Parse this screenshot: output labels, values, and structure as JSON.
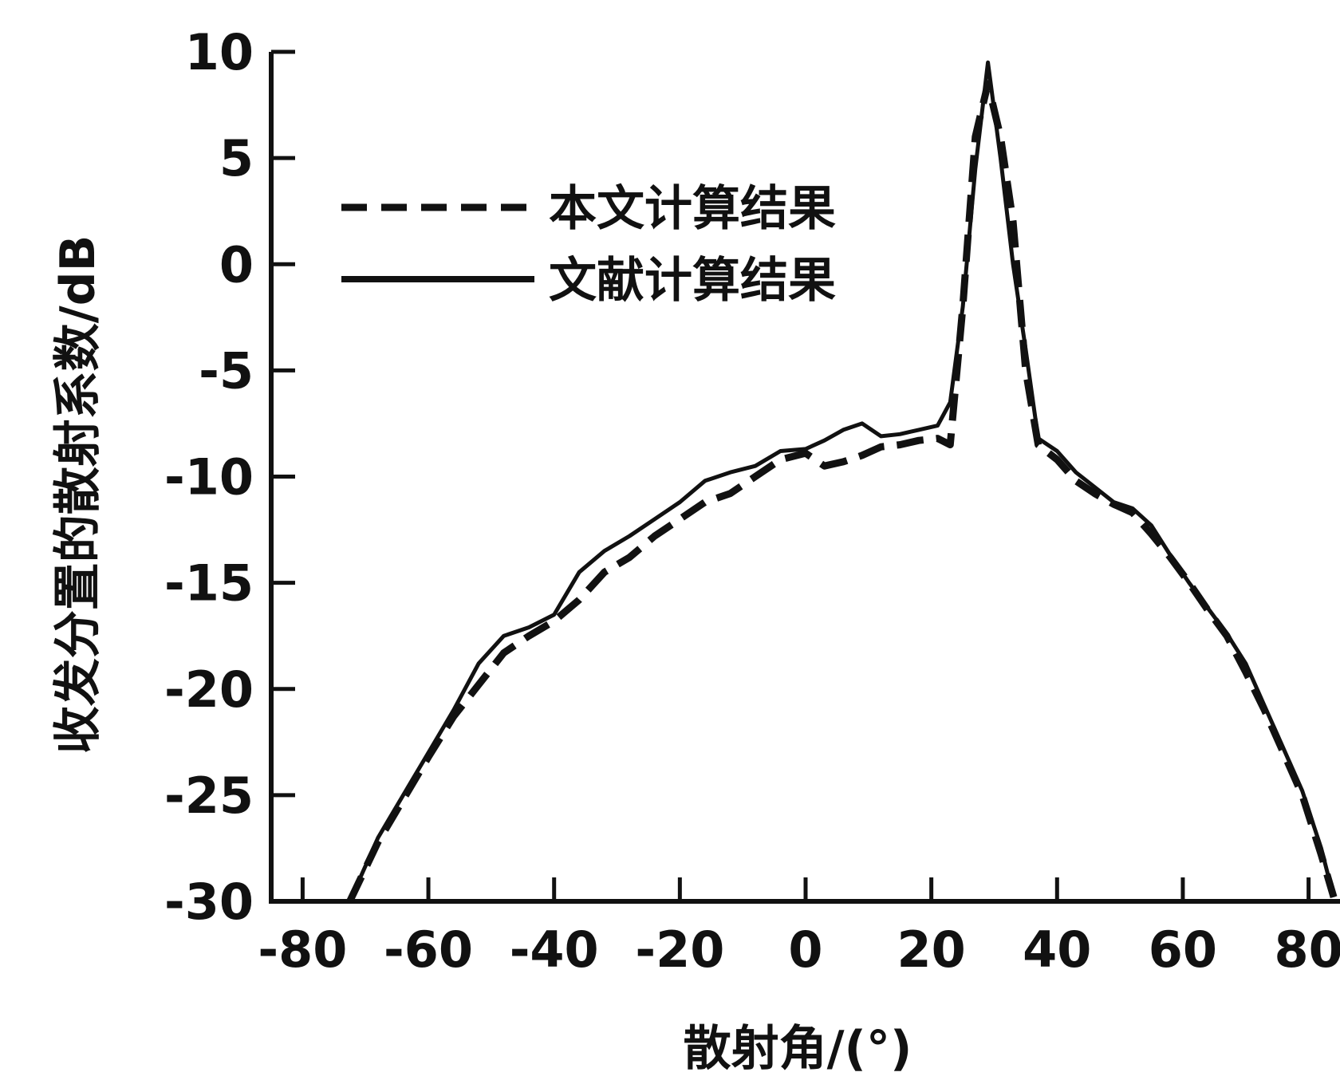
{
  "chart_data": {
    "type": "line",
    "xlabel": "散射角/(°)",
    "ylabel": "收发分置的散射系数/dB",
    "xlim": [
      -85,
      85
    ],
    "ylim": [
      -30,
      10
    ],
    "x_ticks": [
      -80,
      -60,
      -40,
      -20,
      0,
      20,
      40,
      60,
      80
    ],
    "y_ticks": [
      10,
      5,
      0,
      -5,
      -10,
      -15,
      -20,
      -25,
      -30
    ],
    "x_tick_labels": [
      "-80",
      "-60",
      "-40",
      "-20",
      "0",
      "20",
      "40",
      "60",
      "80"
    ],
    "y_tick_labels": [
      "10",
      "5",
      "0",
      "-5",
      "-10",
      "-15",
      "-20",
      "-25",
      "-30"
    ],
    "legend_position": "top-left",
    "grid": false,
    "series": [
      {
        "name": "本文计算结果",
        "style": "dashed",
        "color": "#111111",
        "x": [
          -72.5,
          -68,
          -64,
          -60,
          -56,
          -52,
          -48,
          -44,
          -40,
          -36,
          -32,
          -28,
          -24,
          -20,
          -16,
          -12,
          -8,
          -4,
          0,
          3,
          6,
          9,
          12,
          15,
          18,
          21,
          23,
          25,
          27,
          29,
          31,
          33,
          35,
          37,
          40,
          43,
          46,
          49,
          52,
          55,
          58,
          61,
          64,
          67,
          70,
          73,
          76,
          79,
          82,
          84
        ],
        "y": [
          -30,
          -27.2,
          -25.2,
          -23.2,
          -21.3,
          -19.8,
          -18.3,
          -17.5,
          -16.8,
          -15.8,
          -14.5,
          -13.8,
          -12.8,
          -12.0,
          -11.2,
          -10.8,
          -10.0,
          -9.2,
          -8.9,
          -9.5,
          -9.3,
          -9.0,
          -8.6,
          -8.5,
          -8.3,
          -8.2,
          -8.5,
          -2.0,
          6.0,
          8.5,
          6.0,
          2.0,
          -5.0,
          -8.5,
          -9.2,
          -10.2,
          -10.8,
          -11.3,
          -11.7,
          -12.7,
          -13.8,
          -15.0,
          -16.3,
          -17.5,
          -19.2,
          -21.0,
          -23.0,
          -25.0,
          -27.8,
          -29.8
        ]
      },
      {
        "name": "文献计算结果",
        "style": "solid",
        "color": "#111111",
        "x": [
          -72.5,
          -68,
          -64,
          -60,
          -56,
          -52,
          -48,
          -44,
          -40,
          -36,
          -32,
          -28,
          -24,
          -20,
          -16,
          -12,
          -8,
          -4,
          0,
          3,
          6,
          9,
          12,
          15,
          18,
          21,
          23,
          25,
          27,
          29,
          31,
          33,
          35,
          37,
          40,
          43,
          46,
          49,
          52,
          55,
          58,
          61,
          64,
          67,
          70,
          73,
          76,
          79,
          82,
          84
        ],
        "y": [
          -30,
          -27.0,
          -25.0,
          -23.0,
          -21.0,
          -18.8,
          -17.5,
          -17.1,
          -16.5,
          -14.5,
          -13.5,
          -12.8,
          -12.0,
          -11.2,
          -10.2,
          -9.8,
          -9.5,
          -8.8,
          -8.7,
          -8.3,
          -7.8,
          -7.5,
          -8.1,
          -8.0,
          -7.8,
          -7.6,
          -6.5,
          -2.0,
          4.5,
          9.5,
          5.0,
          0.0,
          -4.0,
          -8.2,
          -8.8,
          -9.8,
          -10.5,
          -11.2,
          -11.5,
          -12.3,
          -13.7,
          -15.0,
          -16.2,
          -17.4,
          -18.8,
          -20.8,
          -22.8,
          -24.8,
          -27.5,
          -29.8
        ]
      }
    ]
  }
}
